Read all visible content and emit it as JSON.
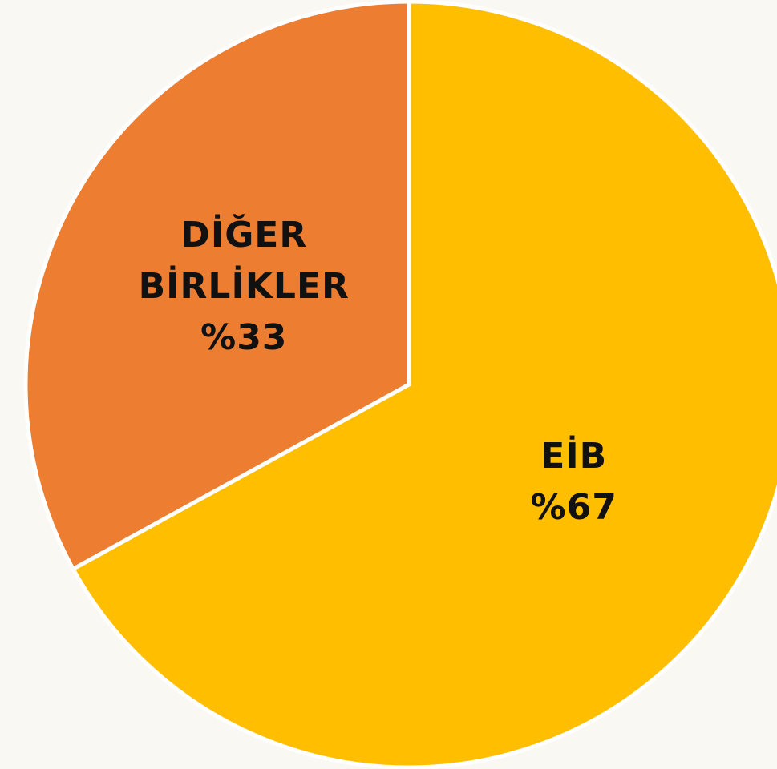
{
  "chart_data": {
    "type": "pie",
    "categories": [
      "DİĞER BİRLİKLER",
      "EİB"
    ],
    "values": [
      33,
      67
    ],
    "value_labels": [
      "%33",
      "%67"
    ],
    "colors": [
      "#ed7d31",
      "#ffbe00"
    ]
  }
}
